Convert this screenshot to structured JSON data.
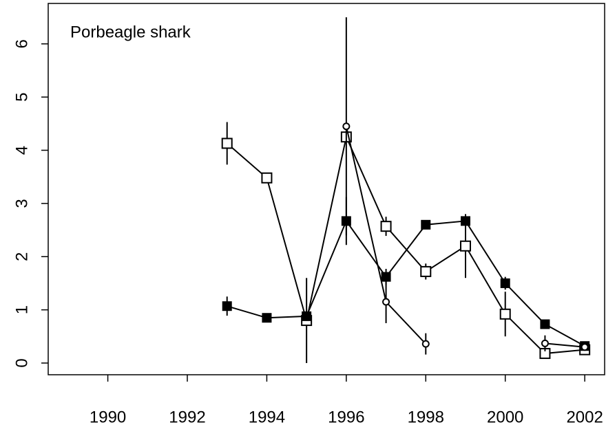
{
  "chart_data": {
    "type": "line",
    "annotation": "Porbeagle shark",
    "x": [
      1993,
      1994,
      1995,
      1996,
      1997,
      1998,
      1999,
      2000,
      2001,
      2002
    ],
    "series": [
      {
        "marker": "open-square",
        "color": "#000000",
        "values": [
          4.13,
          3.48,
          0.8,
          4.25,
          2.57,
          1.72,
          2.2,
          0.92,
          0.18,
          0.25
        ],
        "errors": [
          0.4,
          null,
          0.8,
          null,
          0.18,
          0.15,
          0.6,
          0.42,
          null,
          null
        ]
      },
      {
        "marker": "filled-square",
        "color": "#000000",
        "values": [
          1.07,
          0.85,
          0.88,
          2.67,
          1.62,
          2.6,
          2.67,
          1.5,
          0.73,
          0.32
        ],
        "errors": [
          0.18,
          0.08,
          null,
          0.45,
          0.15,
          null,
          0.12,
          0.12,
          null,
          null
        ]
      },
      {
        "marker": "circle",
        "color": "#000000",
        "values": [
          null,
          null,
          null,
          4.45,
          1.15,
          0.36,
          null,
          null,
          0.37,
          0.3
        ],
        "errors": [
          null,
          null,
          null,
          2.05,
          0.4,
          0.2,
          null,
          null,
          0.15,
          null
        ]
      }
    ],
    "xlim": [
      1988.5,
      2002.5
    ],
    "ylim": [
      -0.22,
      6.76
    ],
    "xticks": [
      1990,
      1992,
      1994,
      1996,
      1998,
      2000,
      2002
    ],
    "yticks": [
      0,
      1,
      2,
      3,
      4,
      5,
      6
    ]
  }
}
